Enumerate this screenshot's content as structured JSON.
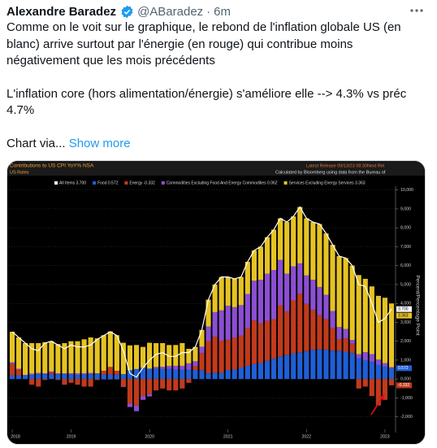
{
  "tweet": {
    "author_name": "Alexandre Baradez",
    "handle": "@ABaradez",
    "separator": "·",
    "time": "6m",
    "paragraphs": [
      [
        "Comme on le voit sur le graphique, le rebond de l'inflation globale US (en",
        "blanc) arrive surtout par l'énergie (en rouge) qui contribue moins",
        "négativement que les mois précédents"
      ],
      [
        "L'inflation core (hors alimentation/énergie) s'améliore elle --> 4.3% vs préc",
        "4.7%"
      ],
      [
        "Chart via..."
      ]
    ],
    "show_more": "Show more"
  },
  "chart_header": {
    "title": "Contributions to US CPI YoY% NSA",
    "subtitle": "US Rates",
    "latest_release": "Latest Release 09/13/23 08:30",
    "next_release": "Next Rel",
    "source": "Calculated by Bloomberg using data from the Bureau of"
  },
  "chart_data": {
    "type": "stacked_bar",
    "y_axis_label": "Percent/Percentage Point",
    "categories": [
      "2018",
      null,
      null,
      null,
      null,
      null,
      null,
      null,
      null,
      "2019",
      null,
      null,
      null,
      null,
      null,
      null,
      null,
      null,
      null,
      null,
      null,
      "2020",
      null,
      null,
      null,
      null,
      null,
      null,
      null,
      null,
      null,
      null,
      null,
      "2021",
      null,
      null,
      null,
      null,
      null,
      null,
      null,
      null,
      null,
      null,
      null,
      "2022",
      null,
      null,
      null,
      null,
      null,
      null,
      null,
      null,
      null,
      null,
      null,
      "2023",
      null
    ],
    "series": [
      {
        "name": "All Items",
        "last_value_label": "3.700",
        "color": "#ffffff",
        "kind": "line",
        "values": [
          2.5,
          2.2,
          1.9,
          1.6,
          1.5,
          1.9,
          2.0,
          1.8,
          1.6,
          1.8,
          1.7,
          1.7,
          1.8,
          2.1,
          2.3,
          2.5,
          2.3,
          1.5,
          0.3,
          0.1,
          0.6,
          1.0,
          1.3,
          1.4,
          1.2,
          1.2,
          1.4,
          1.4,
          1.7,
          2.6,
          4.2,
          5.0,
          5.4,
          5.4,
          5.3,
          5.4,
          6.2,
          6.8,
          7.0,
          7.5,
          7.9,
          8.5,
          8.3,
          8.6,
          9.1,
          8.5,
          8.3,
          8.2,
          7.7,
          7.1,
          6.5,
          6.4,
          6.0,
          5.0,
          4.9,
          4.0,
          3.0,
          3.2,
          3.7
        ]
      },
      {
        "name": "Food",
        "last_value_label": "0.572",
        "color": "#1f5fd6",
        "kind": "bar",
        "values": [
          0.2,
          0.2,
          0.2,
          0.22,
          0.26,
          0.26,
          0.24,
          0.26,
          0.26,
          0.24,
          0.22,
          0.24,
          0.26,
          0.28,
          0.24,
          0.24,
          0.24,
          0.26,
          0.47,
          0.53,
          0.6,
          0.55,
          0.55,
          0.53,
          0.53,
          0.5,
          0.5,
          0.5,
          0.48,
          0.47,
          0.3,
          0.34,
          0.33,
          0.48,
          0.5,
          0.61,
          0.7,
          0.8,
          0.85,
          0.97,
          1.07,
          1.2,
          1.27,
          1.36,
          1.42,
          1.48,
          1.55,
          1.57,
          1.56,
          1.5,
          1.5,
          1.45,
          1.37,
          1.1,
          1.0,
          0.9,
          0.76,
          0.66,
          0.572
        ]
      },
      {
        "name": "Energy",
        "last_value_label": "-0.332",
        "color": "#c23a1c",
        "kind": "bar",
        "values": [
          0.6,
          0.3,
          0.0,
          -0.3,
          -0.4,
          -0.05,
          0.1,
          -0.05,
          -0.3,
          -0.2,
          -0.3,
          -0.4,
          -0.4,
          -0.05,
          0.2,
          0.4,
          0.2,
          -0.4,
          -1.3,
          -1.4,
          -0.9,
          -0.8,
          -0.6,
          -0.5,
          -0.6,
          -0.6,
          -0.5,
          -0.2,
          0.2,
          0.9,
          1.7,
          1.9,
          1.7,
          1.6,
          1.7,
          1.7,
          2.0,
          2.3,
          2.1,
          2.1,
          2.1,
          2.7,
          2.3,
          2.8,
          3.1,
          2.5,
          2.1,
          1.8,
          1.6,
          1.2,
          0.6,
          0.7,
          0.5,
          -0.5,
          -0.4,
          -0.9,
          -1.4,
          -1.1,
          -0.332
        ]
      },
      {
        "name": "Commodities Excluding Food And Energy Commodities",
        "last_value_label": "0.062",
        "color": "#8b4fd2",
        "kind": "bar",
        "values": [
          0.08,
          0.04,
          0.02,
          0.07,
          0.06,
          0.05,
          0.06,
          0.04,
          0.04,
          0.07,
          0.08,
          0.07,
          0.06,
          0.02,
          -0.02,
          -0.02,
          -0.02,
          -0.02,
          -0.18,
          -0.3,
          -0.2,
          -0.12,
          0.09,
          0.12,
          0.16,
          0.2,
          0.2,
          0.33,
          0.26,
          0.34,
          0.78,
          1.3,
          1.6,
          1.8,
          1.6,
          1.6,
          1.8,
          2.1,
          2.3,
          2.5,
          2.6,
          2.4,
          2.0,
          1.8,
          1.6,
          1.5,
          1.6,
          1.5,
          1.3,
          0.9,
          0.65,
          0.5,
          0.2,
          0.22,
          0.42,
          0.42,
          0.27,
          0.18,
          0.062
        ]
      },
      {
        "name": "Services Excluding Energy Services",
        "last_value_label": "3.363",
        "color": "#e6c323",
        "kind": "bar",
        "values": [
          1.62,
          1.66,
          1.68,
          1.61,
          1.58,
          1.64,
          1.6,
          1.55,
          1.6,
          1.69,
          1.7,
          1.79,
          1.88,
          1.85,
          1.88,
          1.88,
          1.88,
          1.66,
          1.31,
          1.27,
          1.1,
          1.37,
          1.26,
          1.25,
          1.11,
          1.1,
          1.2,
          0.77,
          0.76,
          0.89,
          1.42,
          1.46,
          1.77,
          1.52,
          1.5,
          1.49,
          1.7,
          1.6,
          1.75,
          1.93,
          2.13,
          2.2,
          2.73,
          2.64,
          2.98,
          3.02,
          3.05,
          3.33,
          3.24,
          3.5,
          3.75,
          3.75,
          3.93,
          4.18,
          3.88,
          3.58,
          3.37,
          3.46,
          3.363
        ]
      }
    ],
    "ylim": [
      -2.4,
      10.2
    ],
    "yticks": [
      {
        "value": 10,
        "label": "10,000"
      },
      {
        "value": 9,
        "label": "9,000"
      },
      {
        "value": 8,
        "label": "8,000"
      },
      {
        "value": 7,
        "label": "7,000"
      },
      {
        "value": 6,
        "label": "6,000"
      },
      {
        "value": 5,
        "label": "5,000"
      },
      {
        "value": 4,
        "label": "4,000"
      },
      {
        "value": 3,
        "label": "3,000"
      },
      {
        "value": 2,
        "label": "2,000"
      },
      {
        "value": 1,
        "label": "1,000"
      },
      {
        "value": 0,
        "label": "0,000"
      },
      {
        "value": -1,
        "label": "-1,000"
      },
      {
        "value": -2,
        "label": "-2,000"
      }
    ],
    "grid": true
  }
}
